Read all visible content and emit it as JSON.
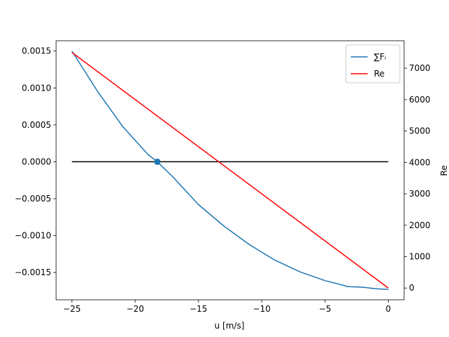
{
  "chart_data": {
    "type": "line",
    "title": "",
    "xlabel": "u [m/s]",
    "ylabel_left": "",
    "ylabel_right": "Re",
    "xlim": [
      -26.25,
      1.25
    ],
    "ylim_left": [
      -0.00187,
      0.00164
    ],
    "ylim_right": [
      -375,
      7875
    ],
    "xticks": [
      -25,
      -20,
      -15,
      -10,
      -5,
      0
    ],
    "xtick_labels": [
      "−25",
      "−20",
      "−15",
      "−10",
      "−5",
      "0"
    ],
    "yticks_left": [
      0.0015,
      0.001,
      0.0005,
      0.0,
      -0.0005,
      -0.001,
      -0.0015
    ],
    "ytick_labels_left": [
      "0.0015",
      "0.0010",
      "0.0005",
      "0.0000",
      "−0.0005",
      "−0.0010",
      "−0.0015"
    ],
    "yticks_right": [
      0,
      1000,
      2000,
      3000,
      4000,
      5000,
      6000,
      7000
    ],
    "ytick_labels_right": [
      "0",
      "1000",
      "2000",
      "3000",
      "4000",
      "5000",
      "6000",
      "7000"
    ],
    "legend": {
      "placement": "upper right",
      "entries": [
        "∑Fᵢ",
        "Re"
      ]
    },
    "series": [
      {
        "name": "∑Fᵢ",
        "axis": "left",
        "color": "#1f77b4",
        "x": [
          -25,
          -23,
          -21,
          -19,
          -18.25,
          -17,
          -15,
          -13,
          -11,
          -9,
          -7,
          -5,
          -3.4,
          -3.3,
          -2,
          -1,
          0
        ],
        "y": [
          0.0015,
          0.00096,
          0.00048,
          0.0001,
          0.0,
          -0.00021,
          -0.00058,
          -0.00087,
          -0.00112,
          -0.00133,
          -0.00149,
          -0.00161,
          -0.00168,
          -0.00169,
          -0.0017,
          -0.00172,
          -0.00173
        ]
      },
      {
        "name": "Re",
        "axis": "right",
        "color": "#ff0000",
        "x": [
          -25,
          0
        ],
        "y": [
          7500,
          0
        ]
      }
    ],
    "reference_line": {
      "y": 0.0,
      "x": [
        -25,
        0
      ],
      "color": "#000000"
    },
    "marker": {
      "x": -18.25,
      "y": 0.0,
      "color": "#1f77b4"
    }
  }
}
